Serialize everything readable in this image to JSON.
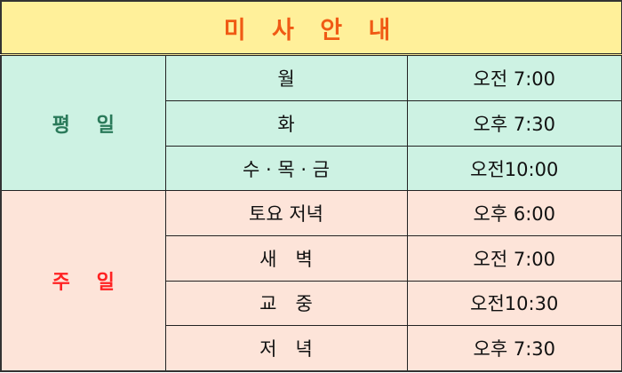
{
  "title": "미 사 안 내",
  "colors": {
    "title_bg": "#fff09a",
    "title_text": "#f05a14",
    "weekday_bg": "#cdf2e3",
    "weekday_label": "#2a7a5a",
    "sunday_bg": "#fde4d9",
    "sunday_label": "#ff2222"
  },
  "groups": [
    {
      "label": "평　 일",
      "rows": [
        {
          "day": "월",
          "time": "오전 7:00"
        },
        {
          "day": "화",
          "time": "오후 7:30"
        },
        {
          "day": "수 · 목 · 금",
          "time": "오전10:00"
        }
      ]
    },
    {
      "label": "주　 일",
      "rows": [
        {
          "day": "토요 저녁",
          "time": "오후 6:00"
        },
        {
          "day": "새　벽",
          "time": "오전 7:00"
        },
        {
          "day": "교　중",
          "time": "오전10:30"
        },
        {
          "day": "저　녁",
          "time": "오후 7:30"
        }
      ]
    }
  ]
}
